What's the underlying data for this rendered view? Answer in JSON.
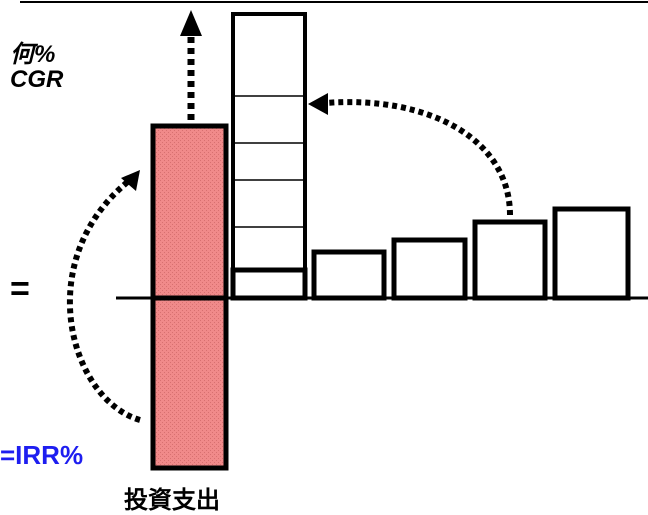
{
  "labels": {
    "cgr_question": "何%",
    "cgr": "CGR",
    "equals": "=",
    "irr": "=IRR%",
    "investment": "投資支出"
  },
  "colors": {
    "investment_fill": "#f08a8a",
    "irr_text": "#1e1ef0",
    "stroke": "#000000"
  },
  "bars": {
    "investment_outflow": 1,
    "cash_flows": [
      0.18,
      0.28,
      0.33,
      0.45,
      0.52
    ],
    "cumulative_value": 1.6,
    "cumulative_segments": 5
  }
}
